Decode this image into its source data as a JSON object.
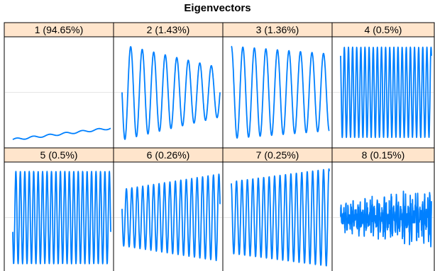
{
  "title": "Eigenvectors",
  "colors": {
    "strip_bg": "#ffe5cc",
    "line": "#0080ff",
    "frame": "#000000",
    "refline": "#e6e6e6"
  },
  "chart_data": {
    "type": "line",
    "title": "Eigenvectors",
    "layout": "2 rows x 4 columns of panels",
    "ylim": [
      -1,
      1
    ],
    "reference_line": 0,
    "panels": [
      {
        "label": "1 (94.65%)",
        "kind": "trend",
        "start": -0.92,
        "end": -0.7,
        "ripple": 0.02,
        "waves": 6
      },
      {
        "label": "2 (1.43%)",
        "kind": "sine",
        "waves": 8.5,
        "amp_start": 0.93,
        "amp_end": 0.48,
        "center": 0.0,
        "phase": 0.25
      },
      {
        "label": "3 (1.36%)",
        "kind": "sine",
        "waves": 8.5,
        "amp_start": 0.9,
        "amp_end": 0.75,
        "center": 0.0,
        "phase": 0.0
      },
      {
        "label": "4 (0.5%)",
        "kind": "sine",
        "waves": 22,
        "amp_start": 0.88,
        "amp_end": 0.88,
        "center": 0.0,
        "phase": 0.1
      },
      {
        "label": "5 (0.5%)",
        "kind": "sine",
        "waves": 22,
        "amp_start": 0.9,
        "amp_end": 0.9,
        "center": 0.0,
        "phase": 0.3
      },
      {
        "label": "6 (0.26%)",
        "kind": "sine",
        "waves": 18,
        "amp_start": 0.55,
        "amp_end": 0.85,
        "center": 0.0,
        "phase": 0.2
      },
      {
        "label": "7 (0.25%)",
        "kind": "sine",
        "waves": 18,
        "amp_start": 0.7,
        "amp_end": 0.95,
        "center": 0.0,
        "phase": 0.05
      },
      {
        "label": "8 (0.15%)",
        "kind": "noise",
        "waves": 38,
        "amp_start": 0.25,
        "amp_end": 0.45,
        "center": 0.0,
        "phase": 0.0
      }
    ]
  }
}
